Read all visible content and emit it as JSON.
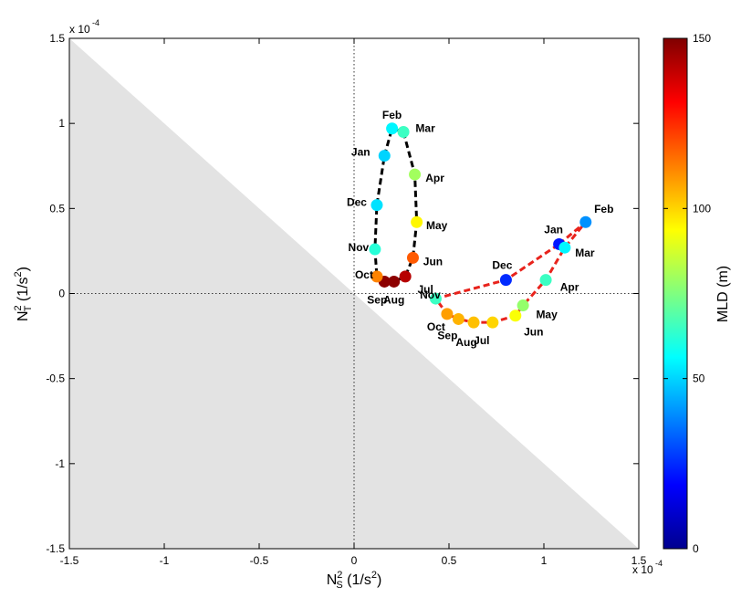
{
  "chart_data": {
    "type": "scatter",
    "xlabel": "N_S^2 (1/s^2)",
    "ylabel": "N_T^2 (1/s^2)",
    "x_exponent": "x 10",
    "x_exponent_power": "-4",
    "y_exponent": "x 10",
    "y_exponent_power": "-4",
    "xlim": [
      -1.5,
      1.5
    ],
    "ylim": [
      -1.5,
      1.5
    ],
    "xticks": [
      "-1.5",
      "-1",
      "-0.5",
      "0",
      "0.5",
      "1",
      "1.5"
    ],
    "yticks": [
      "-1.5",
      "-1",
      "-0.5",
      "0",
      "0.5",
      "1",
      "1.5"
    ],
    "xtick_values": [
      -1.5,
      -1,
      -0.5,
      0,
      0.5,
      1,
      1.5
    ],
    "ytick_values": [
      -1.5,
      -1,
      -0.5,
      0,
      0.5,
      1,
      1.5
    ],
    "grid": false,
    "shaded_region": "below line y = -x",
    "shade_color": "#e3e3e3",
    "colorbar": {
      "label": "MLD (m)",
      "range": [
        0,
        150
      ],
      "ticks": [
        "0",
        "50",
        "100",
        "150"
      ],
      "tick_values": [
        0,
        50,
        100,
        150
      ],
      "colormap": "jet"
    },
    "series": [
      {
        "line_color": "#000000",
        "line_style": "dashed",
        "points": [
          {
            "label": "Jan",
            "x": 0.16,
            "y": 0.81,
            "mld": 50
          },
          {
            "label": "Feb",
            "x": 0.2,
            "y": 0.97,
            "mld": 55
          },
          {
            "label": "Mar",
            "x": 0.26,
            "y": 0.95,
            "mld": 65
          },
          {
            "label": "Apr",
            "x": 0.32,
            "y": 0.7,
            "mld": 80
          },
          {
            "label": "May",
            "x": 0.33,
            "y": 0.42,
            "mld": 95
          },
          {
            "label": "Jun",
            "x": 0.31,
            "y": 0.21,
            "mld": 118
          },
          {
            "label": "Jul",
            "x": 0.27,
            "y": 0.1,
            "mld": 142
          },
          {
            "label": "Aug",
            "x": 0.21,
            "y": 0.07,
            "mld": 148
          },
          {
            "label": "Sep",
            "x": 0.16,
            "y": 0.07,
            "mld": 148
          },
          {
            "label": "Oct",
            "x": 0.12,
            "y": 0.1,
            "mld": 112
          },
          {
            "label": "Nov",
            "x": 0.11,
            "y": 0.26,
            "mld": 62
          },
          {
            "label": "Dec",
            "x": 0.12,
            "y": 0.52,
            "mld": 52
          }
        ]
      },
      {
        "line_color": "#e8231c",
        "line_style": "dashed",
        "points": [
          {
            "label": "Jan",
            "x": 1.08,
            "y": 0.29,
            "mld": 22
          },
          {
            "label": "Feb",
            "x": 1.22,
            "y": 0.42,
            "mld": 40
          },
          {
            "label": "Mar",
            "x": 1.11,
            "y": 0.27,
            "mld": 55
          },
          {
            "label": "Apr",
            "x": 1.01,
            "y": 0.08,
            "mld": 65
          },
          {
            "label": "May",
            "x": 0.89,
            "y": -0.07,
            "mld": 78
          },
          {
            "label": "Jun",
            "x": 0.85,
            "y": -0.13,
            "mld": 93
          },
          {
            "label": "Jul",
            "x": 0.73,
            "y": -0.17,
            "mld": 100
          },
          {
            "label": "Aug",
            "x": 0.63,
            "y": -0.17,
            "mld": 103
          },
          {
            "label": "Sep",
            "x": 0.55,
            "y": -0.15,
            "mld": 105
          },
          {
            "label": "Oct",
            "x": 0.49,
            "y": -0.12,
            "mld": 108
          },
          {
            "label": "Nov",
            "x": 0.43,
            "y": -0.03,
            "mld": 65
          },
          {
            "label": "Dec",
            "x": 0.8,
            "y": 0.08,
            "mld": 25
          }
        ]
      }
    ]
  }
}
